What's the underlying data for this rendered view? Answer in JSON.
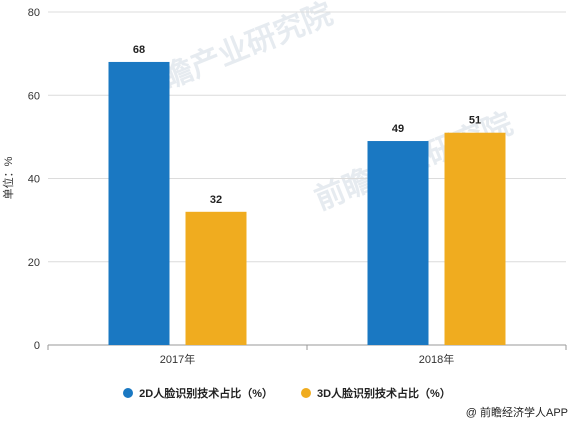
{
  "chart_data": {
    "type": "bar",
    "categories": [
      "2017年",
      "2018年"
    ],
    "series": [
      {
        "name": "2D人脸识别技术占比（%）",
        "values": [
          68,
          49
        ],
        "color": "#1a78c2"
      },
      {
        "name": "3D人脸识别技术占比（%）",
        "values": [
          32,
          51
        ],
        "color": "#f0ac1f"
      }
    ],
    "ylabel": "单位：%",
    "ylim": [
      0,
      80
    ],
    "yticks": [
      "0",
      "20",
      "40",
      "60",
      "80"
    ],
    "grid": true,
    "legend": "bottom"
  },
  "source": "@ 前瞻经济学人APP",
  "watermark": "前瞻产业研究院"
}
